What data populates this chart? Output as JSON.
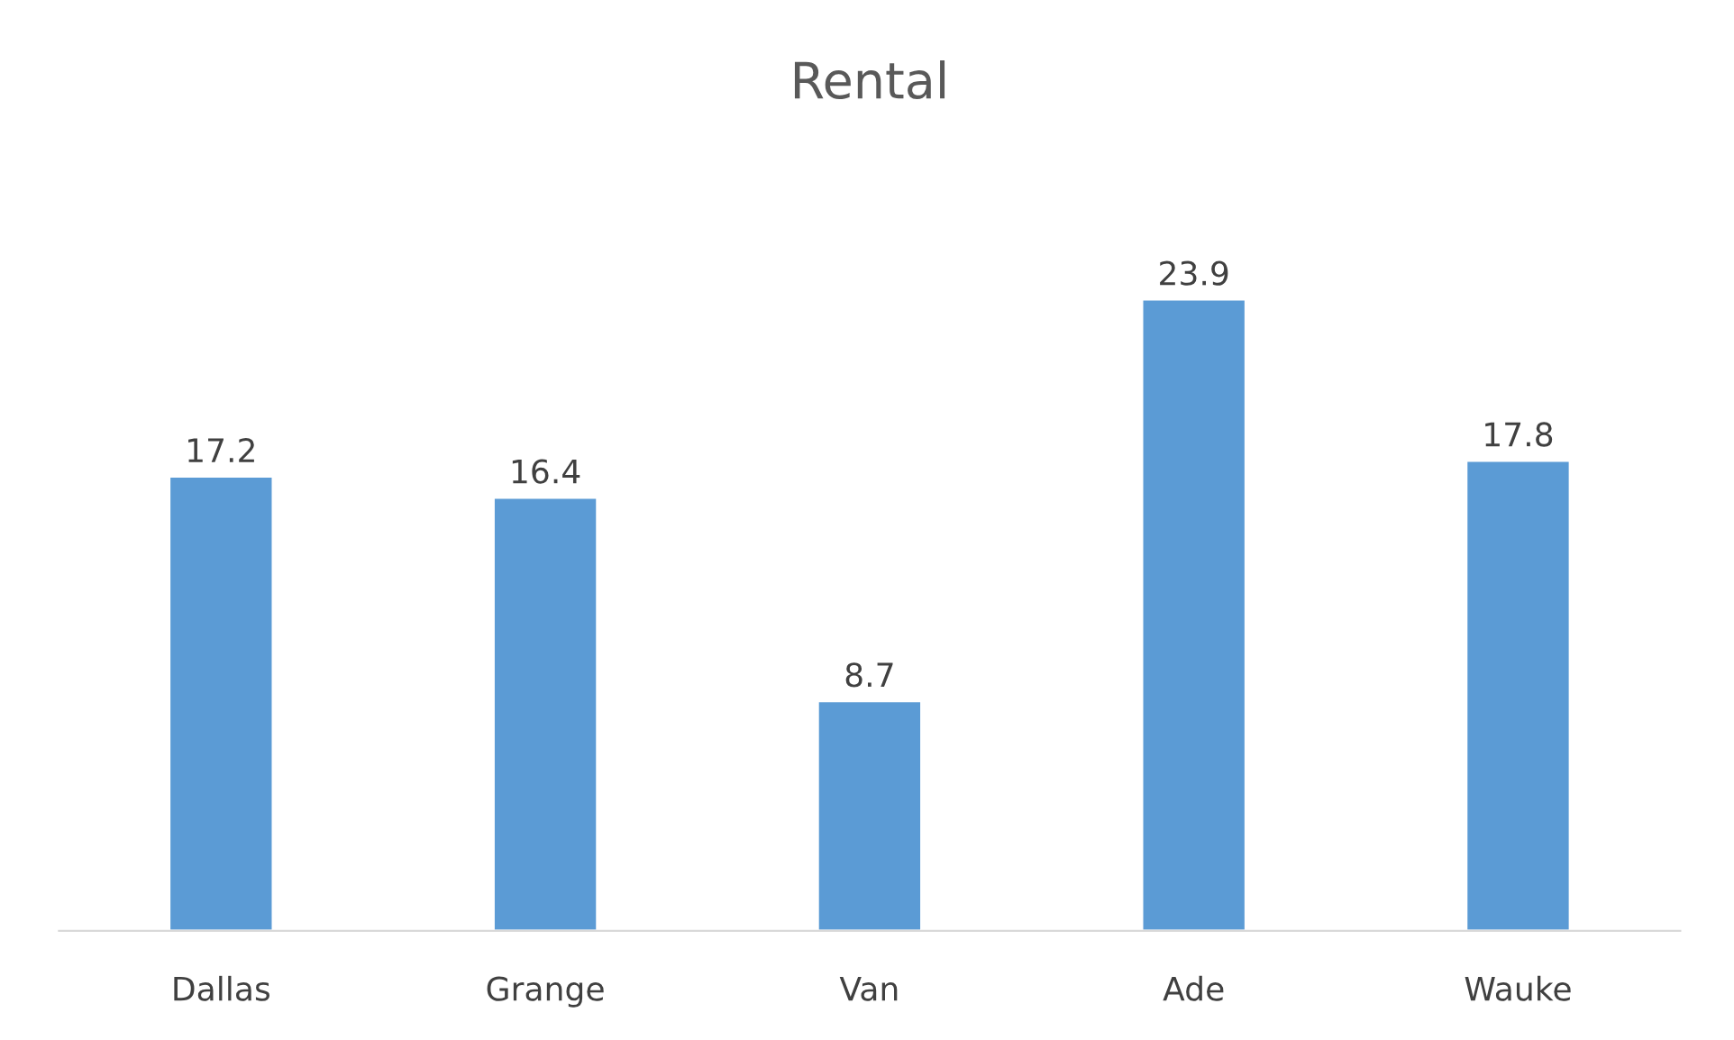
{
  "chart_data": {
    "type": "bar",
    "title": "Rental",
    "categories": [
      "Dallas",
      "Grange",
      "Van",
      "Ade",
      "Wauke"
    ],
    "values": [
      17.2,
      16.4,
      8.7,
      23.9,
      17.8
    ],
    "color": "#5b9bd5",
    "data_labels": true
  }
}
